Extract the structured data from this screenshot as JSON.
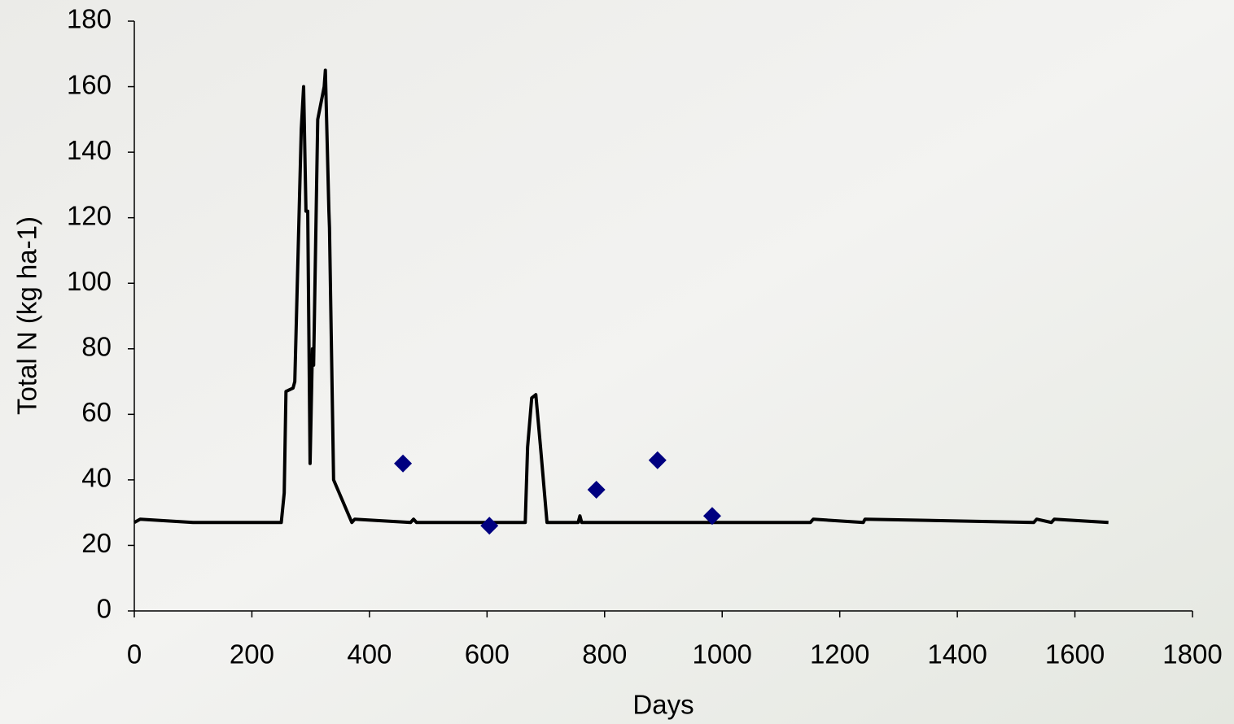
{
  "chart_data": {
    "type": "line",
    "x_label": "Days",
    "y_label": "Total N (kg ha-1)",
    "xlim": [
      0,
      1800
    ],
    "xticks": [
      0,
      200,
      400,
      600,
      800,
      1000,
      1200,
      1400,
      1600,
      1800
    ],
    "ylim": [
      0,
      180
    ],
    "yticks": [
      0,
      20,
      40,
      60,
      80,
      100,
      120,
      140,
      160,
      180
    ],
    "grid": false,
    "series": [
      {
        "mode": "lines",
        "color": "#000000",
        "x": [
          0,
          10,
          100,
          250,
          255,
          258,
          270,
          273,
          284,
          288,
          292,
          295,
          299,
          303,
          305,
          312,
          323,
          325,
          331,
          332,
          339,
          370,
          375,
          470,
          475,
          480,
          665,
          669,
          676,
          683,
          691,
          702,
          755,
          758,
          761,
          1150,
          1155,
          1240,
          1243,
          1530,
          1535,
          1560,
          1565,
          1657
        ],
        "values": [
          27,
          28,
          27,
          27,
          36,
          67,
          68,
          70,
          147,
          160,
          122,
          122,
          45,
          80,
          75,
          150,
          160,
          165,
          122,
          117,
          40,
          27,
          28,
          27,
          28,
          27,
          27,
          50,
          65,
          66,
          50,
          27,
          27,
          29,
          27,
          27,
          28,
          27,
          28,
          27,
          28,
          27,
          28,
          27
        ]
      },
      {
        "mode": "markers",
        "marker": "diamond",
        "color": "#000080",
        "x": [
          457,
          604,
          786,
          890,
          983
        ],
        "values": [
          45,
          26,
          37,
          46,
          29
        ]
      }
    ]
  }
}
